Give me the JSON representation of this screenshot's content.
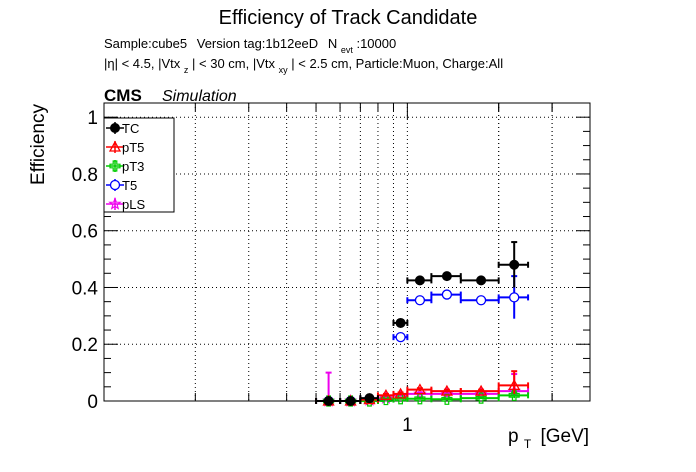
{
  "chart_data": {
    "type": "scatter",
    "title": "Efficiency of Track Candidate",
    "subtitle_line1": {
      "sample": "Sample:cube5",
      "version": "Version tag:1b12eeD",
      "nevt_label": "N",
      "nevt_sub": "evt",
      "nevt_value": ":10000"
    },
    "subtitle_line2": {
      "eta": "|η| < 4.5, |Vtx",
      "z_sub": "z",
      "z_cut": "| < 30 cm, |Vtx",
      "xy_sub": "xy",
      "rest": "| < 2.5 cm, Particle:Muon, Charge:All"
    },
    "cms_label": "CMS",
    "sim_label": "Simulation",
    "ylabel": "Efficiency",
    "xlabel_main": "p",
    "xlabel_sub": "T",
    "xlabel_unit": "[GeV]",
    "xscale": "log",
    "xlim": [
      0.1,
      4.0
    ],
    "ylim": [
      0,
      1.05
    ],
    "yticks": [
      "0",
      "0.2",
      "0.4",
      "0.6",
      "0.8",
      "1"
    ],
    "yticks_values": [
      0,
      0.2,
      0.4,
      0.6,
      0.8,
      1.0
    ],
    "xtick_labels": [
      "1"
    ],
    "xtick_values": [
      1
    ],
    "grid": true,
    "legend_position": "top-left",
    "bin_edges": [
      0.5,
      0.6,
      0.7,
      0.8,
      0.9,
      1.0,
      1.2,
      1.5,
      2.0,
      2.5,
      3.0,
      4.0
    ],
    "series": [
      {
        "name": "TC",
        "color": "#000000",
        "marker": "filled-circle",
        "points": [
          {
            "x": 0.55,
            "xlo": 0.5,
            "xhi": 0.6,
            "y": 0.0,
            "elo": 0.0,
            "ehi": 0.0
          },
          {
            "x": 0.65,
            "xlo": 0.6,
            "xhi": 0.7,
            "y": 0.0,
            "elo": 0.0,
            "ehi": 0.0
          },
          {
            "x": 0.75,
            "xlo": 0.7,
            "xhi": 0.8,
            "y": 0.01,
            "elo": 0.005,
            "ehi": 0.005
          },
          {
            "x": 0.95,
            "xlo": 0.9,
            "xhi": 1.0,
            "y": 0.275,
            "elo": 0.01,
            "ehi": 0.01
          },
          {
            "x": 1.1,
            "xlo": 1.0,
            "xhi": 1.2,
            "y": 0.425,
            "elo": 0.005,
            "ehi": 0.005
          },
          {
            "x": 1.35,
            "xlo": 1.2,
            "xhi": 1.5,
            "y": 0.44,
            "elo": 0.005,
            "ehi": 0.005
          },
          {
            "x": 1.75,
            "xlo": 1.5,
            "xhi": 2.0,
            "y": 0.425,
            "elo": 0.005,
            "ehi": 0.005
          },
          {
            "x": 2.25,
            "xlo": 2.0,
            "xhi": 2.5,
            "y": 0.48,
            "elo": 0.08,
            "ehi": 0.08
          }
        ]
      },
      {
        "name": "pT5",
        "color": "#ff0000",
        "marker": "open-triangle",
        "points": [
          {
            "x": 0.55,
            "xlo": 0.5,
            "xhi": 0.6,
            "y": 0.0,
            "elo": 0.0,
            "ehi": 0.0
          },
          {
            "x": 0.65,
            "xlo": 0.6,
            "xhi": 0.7,
            "y": 0.0,
            "elo": 0.0,
            "ehi": 0.0
          },
          {
            "x": 0.75,
            "xlo": 0.7,
            "xhi": 0.8,
            "y": 0.005,
            "elo": 0.003,
            "ehi": 0.003
          },
          {
            "x": 0.85,
            "xlo": 0.8,
            "xhi": 0.9,
            "y": 0.02,
            "elo": 0.005,
            "ehi": 0.005
          },
          {
            "x": 0.95,
            "xlo": 0.9,
            "xhi": 1.0,
            "y": 0.025,
            "elo": 0.005,
            "ehi": 0.005
          },
          {
            "x": 1.1,
            "xlo": 1.0,
            "xhi": 1.2,
            "y": 0.04,
            "elo": 0.005,
            "ehi": 0.005
          },
          {
            "x": 1.35,
            "xlo": 1.2,
            "xhi": 1.5,
            "y": 0.035,
            "elo": 0.005,
            "ehi": 0.005
          },
          {
            "x": 1.75,
            "xlo": 1.5,
            "xhi": 2.0,
            "y": 0.035,
            "elo": 0.005,
            "ehi": 0.005
          },
          {
            "x": 2.25,
            "xlo": 2.0,
            "xhi": 2.5,
            "y": 0.055,
            "elo": 0.03,
            "ehi": 0.05
          }
        ]
      },
      {
        "name": "pT3",
        "color": "#00cc00",
        "marker": "open-cross",
        "points": [
          {
            "x": 0.55,
            "xlo": 0.5,
            "xhi": 0.6,
            "y": 0.0,
            "elo": 0.0,
            "ehi": 0.0
          },
          {
            "x": 0.65,
            "xlo": 0.6,
            "xhi": 0.7,
            "y": 0.0,
            "elo": 0.0,
            "ehi": 0.0
          },
          {
            "x": 0.75,
            "xlo": 0.7,
            "xhi": 0.8,
            "y": 0.0,
            "elo": 0.0,
            "ehi": 0.0
          },
          {
            "x": 0.85,
            "xlo": 0.8,
            "xhi": 0.9,
            "y": 0.005,
            "elo": 0.003,
            "ehi": 0.003
          },
          {
            "x": 0.95,
            "xlo": 0.9,
            "xhi": 1.0,
            "y": 0.008,
            "elo": 0.003,
            "ehi": 0.003
          },
          {
            "x": 1.1,
            "xlo": 1.0,
            "xhi": 1.2,
            "y": 0.008,
            "elo": 0.003,
            "ehi": 0.003
          },
          {
            "x": 1.35,
            "xlo": 1.2,
            "xhi": 1.5,
            "y": 0.006,
            "elo": 0.003,
            "ehi": 0.003
          },
          {
            "x": 1.75,
            "xlo": 1.5,
            "xhi": 2.0,
            "y": 0.01,
            "elo": 0.003,
            "ehi": 0.003
          },
          {
            "x": 2.25,
            "xlo": 2.0,
            "xhi": 2.5,
            "y": 0.02,
            "elo": 0.01,
            "ehi": 0.01
          }
        ]
      },
      {
        "name": "T5",
        "color": "#0000ff",
        "marker": "open-circle",
        "points": [
          {
            "x": 0.55,
            "xlo": 0.5,
            "xhi": 0.6,
            "y": 0.0,
            "elo": 0.0,
            "ehi": 0.0
          },
          {
            "x": 0.65,
            "xlo": 0.6,
            "xhi": 0.7,
            "y": 0.0,
            "elo": 0.0,
            "ehi": 0.0
          },
          {
            "x": 0.75,
            "xlo": 0.7,
            "xhi": 0.8,
            "y": 0.008,
            "elo": 0.004,
            "ehi": 0.004
          },
          {
            "x": 0.95,
            "xlo": 0.9,
            "xhi": 1.0,
            "y": 0.225,
            "elo": 0.01,
            "ehi": 0.01
          },
          {
            "x": 1.1,
            "xlo": 1.0,
            "xhi": 1.2,
            "y": 0.355,
            "elo": 0.005,
            "ehi": 0.005
          },
          {
            "x": 1.35,
            "xlo": 1.2,
            "xhi": 1.5,
            "y": 0.375,
            "elo": 0.005,
            "ehi": 0.005
          },
          {
            "x": 1.75,
            "xlo": 1.5,
            "xhi": 2.0,
            "y": 0.355,
            "elo": 0.005,
            "ehi": 0.005
          },
          {
            "x": 2.25,
            "xlo": 2.0,
            "xhi": 2.5,
            "y": 0.365,
            "elo": 0.075,
            "ehi": 0.075
          }
        ]
      },
      {
        "name": "pLS",
        "color": "#ee00ee",
        "marker": "open-star",
        "points": [
          {
            "x": 0.55,
            "xlo": 0.5,
            "xhi": 0.6,
            "y": 0.0,
            "elo": 0.0,
            "ehi": 0.1
          },
          {
            "x": 0.65,
            "xlo": 0.6,
            "xhi": 0.7,
            "y": 0.0,
            "elo": 0.0,
            "ehi": 0.0
          },
          {
            "x": 0.75,
            "xlo": 0.7,
            "xhi": 0.8,
            "y": 0.003,
            "elo": 0.002,
            "ehi": 0.002
          },
          {
            "x": 0.85,
            "xlo": 0.8,
            "xhi": 0.9,
            "y": 0.01,
            "elo": 0.005,
            "ehi": 0.005
          },
          {
            "x": 0.95,
            "xlo": 0.9,
            "xhi": 1.0,
            "y": 0.02,
            "elo": 0.005,
            "ehi": 0.005
          },
          {
            "x": 1.1,
            "xlo": 1.0,
            "xhi": 1.2,
            "y": 0.025,
            "elo": 0.005,
            "ehi": 0.005
          },
          {
            "x": 1.35,
            "xlo": 1.2,
            "xhi": 1.5,
            "y": 0.025,
            "elo": 0.005,
            "ehi": 0.005
          },
          {
            "x": 1.75,
            "xlo": 1.5,
            "xhi": 2.0,
            "y": 0.025,
            "elo": 0.005,
            "ehi": 0.005
          },
          {
            "x": 2.25,
            "xlo": 2.0,
            "xhi": 2.5,
            "y": 0.035,
            "elo": 0.02,
            "ehi": 0.06
          }
        ]
      }
    ]
  }
}
